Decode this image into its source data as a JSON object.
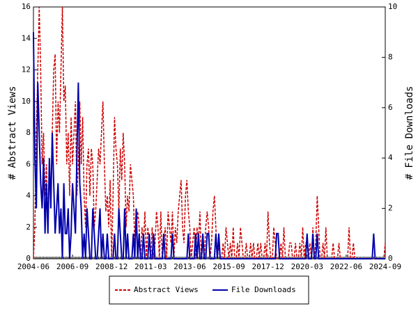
{
  "chart_data": {
    "type": "line",
    "categories": [
      "2004-06",
      null,
      null,
      null,
      null,
      null,
      null,
      null,
      null,
      null,
      null,
      null,
      null,
      null,
      null,
      null,
      null,
      null,
      null,
      null,
      null,
      null,
      null,
      null,
      null,
      null,
      null,
      "2006-09",
      null,
      null,
      null,
      null,
      null,
      null,
      null,
      null,
      null,
      null,
      null,
      null,
      null,
      null,
      null,
      null,
      null,
      null,
      null,
      null,
      null,
      null,
      null,
      null,
      null,
      null,
      "2008-12",
      null,
      null,
      null,
      null,
      null,
      null,
      null,
      null,
      null,
      null,
      null,
      null,
      null,
      null,
      null,
      null,
      null,
      null,
      null,
      null,
      null,
      null,
      null,
      null,
      null,
      null,
      "2011-03",
      null,
      null,
      null,
      null,
      null,
      null,
      null,
      null,
      null,
      null,
      null,
      null,
      null,
      null,
      null,
      null,
      null,
      null,
      null,
      null,
      null,
      null,
      null,
      null,
      null,
      null,
      "2013-06",
      null,
      null,
      null,
      null,
      null,
      null,
      null,
      null,
      null,
      null,
      null,
      null,
      null,
      null,
      null,
      null,
      null,
      null,
      null,
      null,
      null,
      null,
      null,
      null,
      null,
      null,
      "2015-09",
      null,
      null,
      null,
      null,
      null,
      null,
      null,
      null,
      null,
      null,
      null,
      null,
      null,
      null,
      null,
      null,
      null,
      null,
      null,
      null,
      null,
      null,
      null,
      null,
      null,
      null,
      "2017-12",
      null,
      null,
      null,
      null,
      null,
      null,
      null,
      null,
      null,
      null,
      null,
      null,
      null,
      null,
      null,
      null,
      null,
      null,
      null,
      null,
      null,
      null,
      null,
      null,
      null,
      null,
      "2020-03",
      null,
      null,
      null,
      null,
      null,
      null,
      null,
      null,
      null,
      null,
      null,
      null,
      null,
      null,
      null,
      null,
      null,
      null,
      null,
      null,
      null,
      null,
      null,
      null,
      null,
      null,
      "2022-06",
      null,
      null,
      null,
      null,
      null,
      null,
      null,
      null,
      null,
      null,
      null,
      null,
      null,
      null,
      null,
      null,
      null,
      null,
      null,
      null,
      null,
      null,
      null,
      null,
      null,
      null,
      "2024-09"
    ],
    "series": [
      {
        "name": "Abstract Views",
        "color": "#cc0000",
        "dashed": true,
        "axis": "y",
        "values": [
          0,
          2,
          8,
          12,
          16,
          12,
          6,
          8,
          4,
          6,
          2,
          6,
          4,
          8,
          12,
          13,
          6,
          10,
          8,
          12,
          16,
          10,
          11,
          6,
          8,
          4,
          9,
          6,
          8,
          10,
          4,
          6,
          10,
          6,
          9,
          4,
          2,
          6,
          7,
          4,
          7,
          6,
          2,
          3,
          5,
          7,
          6,
          8,
          10,
          6,
          3,
          4,
          2,
          5,
          0,
          4,
          9,
          7,
          6,
          3,
          7,
          5,
          8,
          6,
          2,
          4,
          3,
          6,
          5,
          4,
          1,
          2,
          3,
          2,
          0,
          2,
          1,
          3,
          0,
          2,
          1,
          0,
          2,
          0,
          1,
          3,
          2,
          0,
          3,
          0,
          1,
          2,
          0,
          3,
          2,
          1,
          3,
          0,
          2,
          1,
          3,
          4,
          5,
          2,
          1,
          4,
          5,
          3,
          2,
          0,
          1,
          2,
          0,
          2,
          1,
          3,
          0,
          1,
          0,
          2,
          3,
          2,
          0,
          1,
          3,
          4,
          2,
          0,
          1,
          0,
          0,
          1,
          0,
          2,
          1,
          0,
          1,
          0,
          2,
          0,
          0,
          1,
          0,
          2,
          1,
          0,
          0,
          1,
          0,
          0,
          1,
          0,
          1,
          0,
          0,
          1,
          0,
          1,
          0,
          0,
          1,
          0,
          3,
          1,
          0,
          0,
          2,
          1,
          0,
          0,
          0,
          1,
          0,
          2,
          0,
          0,
          0,
          1,
          1,
          0,
          0,
          1,
          0,
          0,
          1,
          0,
          2,
          0,
          1,
          1,
          0,
          1,
          0,
          2,
          0,
          1,
          4,
          2,
          0,
          0,
          1,
          0,
          2,
          0,
          0,
          0,
          0,
          1,
          0,
          0,
          0,
          1,
          0,
          0,
          0,
          0,
          0,
          0,
          2,
          0,
          0,
          1,
          0,
          0,
          0,
          0,
          0,
          0,
          0,
          0,
          0,
          0,
          0,
          0,
          0,
          0,
          0,
          0,
          0,
          0,
          0,
          0,
          0,
          1
        ]
      },
      {
        "name": "File Downloads",
        "color": "#0000aa",
        "dashed": false,
        "axis": "y2",
        "values": [
          9,
          4,
          2,
          7,
          5,
          3,
          2,
          4,
          1,
          3,
          1,
          4,
          2,
          5,
          3,
          1,
          2,
          3,
          1,
          2,
          0,
          3,
          1,
          1,
          2,
          0,
          1,
          3,
          2,
          1,
          4,
          7,
          3,
          2,
          0,
          1,
          0,
          2,
          1,
          0,
          0,
          2,
          1,
          0,
          0,
          1,
          2,
          0,
          1,
          0,
          0,
          1,
          0,
          0,
          0,
          0,
          1,
          0,
          0,
          2,
          1,
          0,
          0,
          2,
          0,
          1,
          0,
          0,
          0,
          1,
          0,
          2,
          0,
          1,
          0,
          0,
          1,
          0,
          0,
          0,
          1,
          0,
          0,
          1,
          0,
          0,
          0,
          0,
          0,
          0,
          1,
          0,
          0,
          0,
          0,
          0,
          1,
          0,
          0,
          0,
          0,
          0,
          0,
          0,
          0,
          0,
          0,
          1,
          0,
          0,
          0,
          0,
          1,
          0,
          1,
          0,
          0,
          1,
          0,
          0,
          1,
          1,
          0,
          0,
          0,
          0,
          1,
          0,
          1,
          0,
          0,
          0,
          0,
          0,
          0,
          0,
          0,
          0,
          0,
          0,
          0,
          0,
          0,
          0,
          0,
          0,
          0,
          0,
          0,
          0,
          0,
          0,
          0,
          0,
          0,
          0,
          0,
          0,
          0,
          0,
          0,
          0,
          0,
          0,
          0,
          0,
          0,
          0,
          1,
          1,
          0,
          0,
          0,
          0,
          0,
          0,
          0,
          0,
          0,
          0,
          0,
          0,
          0,
          0,
          0,
          0,
          0,
          0,
          0,
          1,
          0,
          0,
          0,
          1,
          0,
          0,
          1,
          0,
          0,
          0,
          0,
          0,
          0,
          0,
          0,
          0,
          0,
          0,
          0,
          0,
          0,
          0,
          0,
          0,
          0,
          0,
          0,
          0,
          0,
          0,
          0,
          0,
          0,
          0,
          0,
          0,
          0,
          0,
          0,
          0,
          0,
          0,
          0,
          0,
          0,
          1,
          0,
          0,
          0,
          0,
          0,
          0,
          0,
          0
        ]
      }
    ],
    "ylabel": "# Abstract Views",
    "y2label": "# File Downloads",
    "ylim": [
      0,
      16
    ],
    "yticks": [
      0,
      2,
      4,
      6,
      8,
      10,
      12,
      14,
      16
    ],
    "y2lim": [
      0,
      10
    ],
    "y2ticks": [
      0,
      2,
      4,
      6,
      8,
      10
    ],
    "legend": "bottom"
  }
}
